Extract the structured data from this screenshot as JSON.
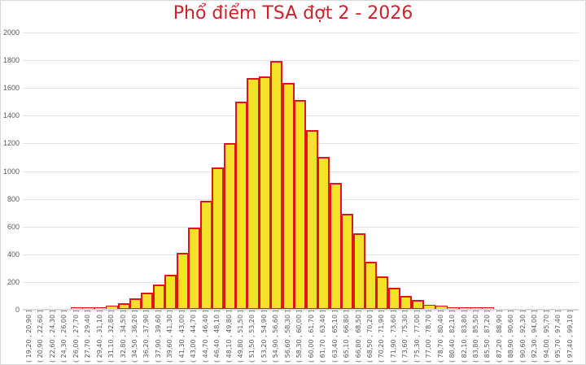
{
  "chart_data": {
    "type": "bar",
    "title": "Phổ điểm TSA đợt 2 - 2026",
    "xlabel": "",
    "ylabel": "",
    "ylim": [
      0,
      2000
    ],
    "yticks": [
      0,
      200,
      400,
      600,
      800,
      1000,
      1200,
      1400,
      1600,
      1800,
      2000
    ],
    "grid": true,
    "legend": null,
    "bar_fill_color": "#F2E32A",
    "bar_border_color": "#E0141B",
    "title_color": "#D0202A",
    "categories": [
      "( 19,20 , 20,90 ]",
      "( 20,90 , 22,60 ]",
      "( 22,60 , 24,30 ]",
      "( 24,30 , 26,00 ]",
      "( 26,00 , 27,70 ]",
      "( 27,70 , 29,40 ]",
      "( 29,40 , 31,10 ]",
      "( 31,10 , 32,80 ]",
      "( 32,80 , 34,50 ]",
      "( 34,50 , 36,20 ]",
      "( 36,20 , 37,90 ]",
      "( 37,90 , 39,60 ]",
      "( 39,60 , 41,30 ]",
      "( 41,30 , 43,00 ]",
      "( 43,00 , 44,70 ]",
      "( 44,70 , 46,40 ]",
      "( 46,40 , 48,10 ]",
      "( 48,10 , 49,80 ]",
      "( 49,80 , 51,50 ]",
      "( 51,50 , 53,20 ]",
      "( 53,20 , 54,90 ]",
      "( 54,90 , 56,60 ]",
      "( 56,60 , 58,30 ]",
      "( 58,30 , 60,00 ]",
      "( 60,00 , 61,70 ]",
      "( 61,70 , 63,40 ]",
      "( 63,40 , 65,10 ]",
      "( 65,10 , 66,80 ]",
      "( 66,80 , 68,50 ]",
      "( 68,50 , 70,20 ]",
      "( 70,20 , 71,90 ]",
      "( 71,90 , 73,60 ]",
      "( 73,60 , 75,30 ]",
      "( 75,30 , 77,00 ]",
      "( 77,00 , 78,70 ]",
      "( 78,70 , 80,40 ]",
      "( 80,40 , 82,10 ]",
      "( 82,10 , 83,80 ]",
      "( 83,80 , 85,50 ]",
      "( 85,50 , 87,20 ]",
      "( 87,20 , 88,90 ]",
      "( 88,90 , 90,60 ]",
      "( 90,60 , 92,30 ]",
      "( 92,30 , 94,00 ]",
      "( 94,00 , 95,70 ]",
      "( 95,70 , 97,40 ]",
      "( 97,40 , 99,10 ]"
    ],
    "values": [
      0,
      0,
      0,
      0,
      5,
      8,
      18,
      30,
      45,
      85,
      125,
      180,
      250,
      410,
      595,
      785,
      1025,
      1205,
      1500,
      1670,
      1685,
      1795,
      1635,
      1515,
      1295,
      1105,
      915,
      690,
      550,
      345,
      240,
      160,
      100,
      72,
      35,
      30,
      17,
      15,
      10,
      5,
      0,
      0,
      0,
      0,
      0,
      0,
      0
    ]
  }
}
